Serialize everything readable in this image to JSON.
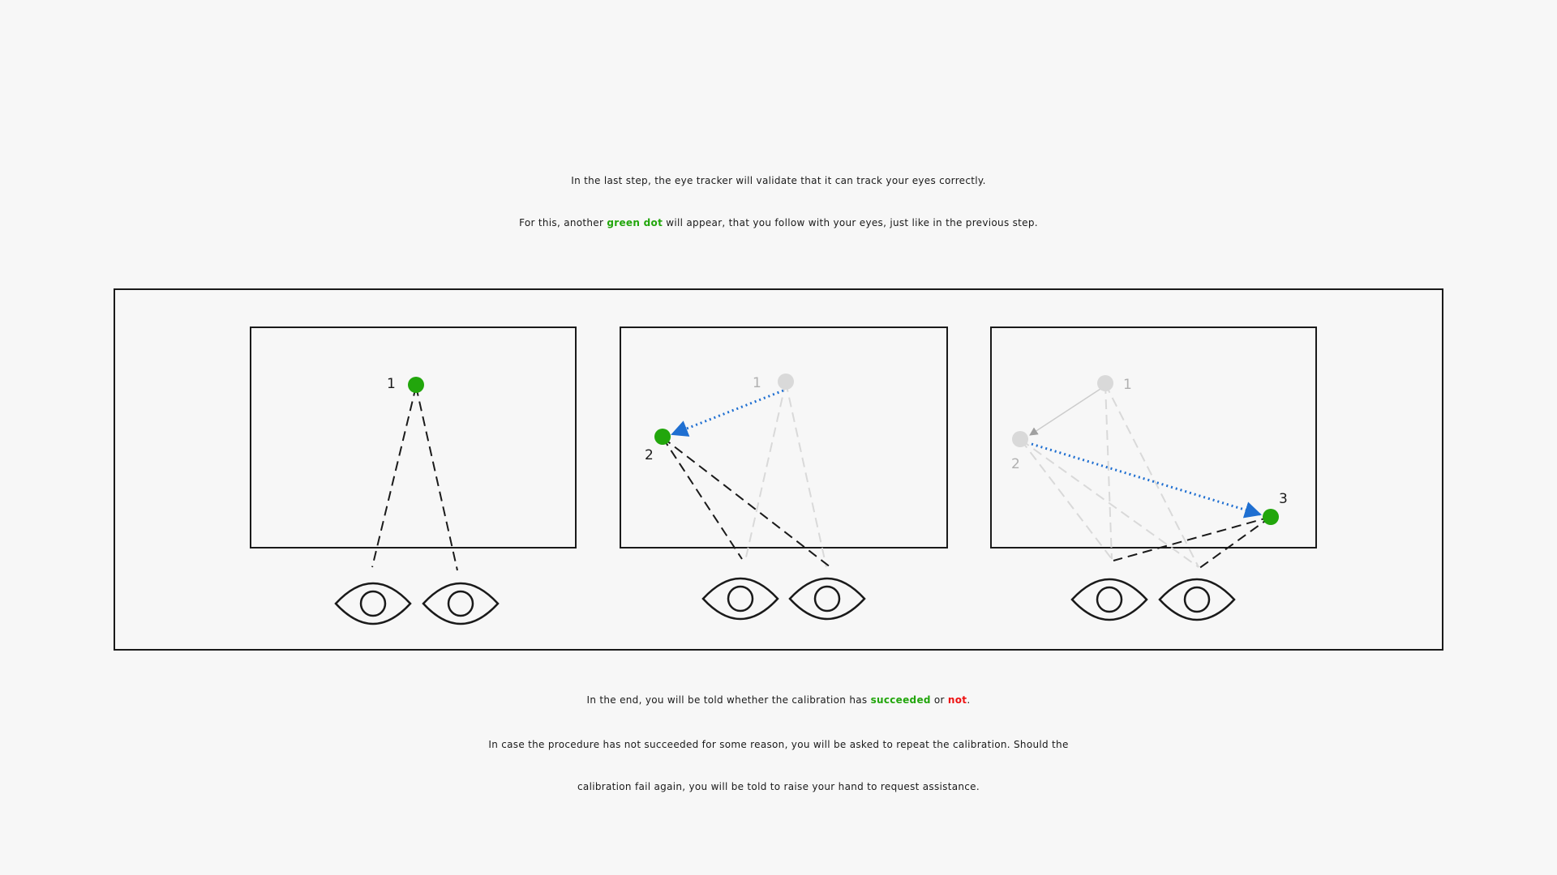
{
  "intro": {
    "line1": "In the last step, the eye tracker will validate that it can track your eyes correctly.",
    "line2_before": "For this, another ",
    "line2_highlight": "green dot",
    "line2_after": " will appear, that you follow with your eyes, just like in the previous step."
  },
  "diagram": {
    "panels": [
      {
        "labels": [
          "1"
        ]
      },
      {
        "labels": [
          "1",
          "2"
        ]
      },
      {
        "labels": [
          "1",
          "2",
          "3"
        ]
      }
    ],
    "colors": {
      "active_dot": "#22a60c",
      "inactive_dot": "#d9d9d9",
      "path_arrow": "#1f6fd1",
      "frame": "#1a1a1a"
    }
  },
  "outro": {
    "line3_before": "In the end, you will be told whether the calibration has ",
    "line3_success": "succeeded",
    "line3_middle": " or ",
    "line3_fail": "not",
    "line3_after": ".",
    "line4": "In case the procedure has not succeeded for some reason, you will be asked to repeat the calibration. Should the",
    "line5": "calibration fail again, you will be told to raise your hand to request assistance."
  }
}
